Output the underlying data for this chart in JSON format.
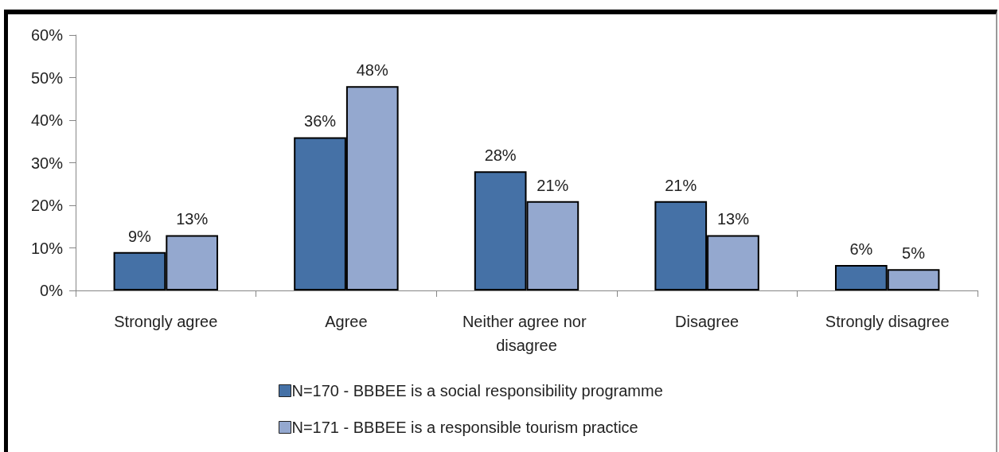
{
  "chart_data": {
    "type": "bar",
    "categories": [
      "Strongly agree",
      "Agree",
      "Neither agree nor disagree",
      "Disagree",
      "Strongly disagree"
    ],
    "series": [
      {
        "name": "N=170 - BBBEE is a social responsibility programme",
        "color": "#4571a6",
        "values": [
          9,
          36,
          28,
          21,
          6
        ],
        "value_labels": [
          "9%",
          "36%",
          "28%",
          "21%",
          "6%"
        ]
      },
      {
        "name": "N=171 - BBBEE is a responsible tourism practice",
        "color": "#94a8cf",
        "values": [
          13,
          48,
          21,
          13,
          5
        ],
        "value_labels": [
          "13%",
          "48%",
          "21%",
          "13%",
          "5%"
        ]
      }
    ],
    "ylim": [
      0,
      60
    ],
    "yticks": [
      {
        "value": 0,
        "label": "0%"
      },
      {
        "value": 10,
        "label": "10%"
      },
      {
        "value": 20,
        "label": "20%"
      },
      {
        "value": 30,
        "label": "30%"
      },
      {
        "value": 40,
        "label": "40%"
      },
      {
        "value": 50,
        "label": "50%"
      },
      {
        "value": 60,
        "label": "60%"
      }
    ],
    "grid": false,
    "legend": "bottom"
  }
}
